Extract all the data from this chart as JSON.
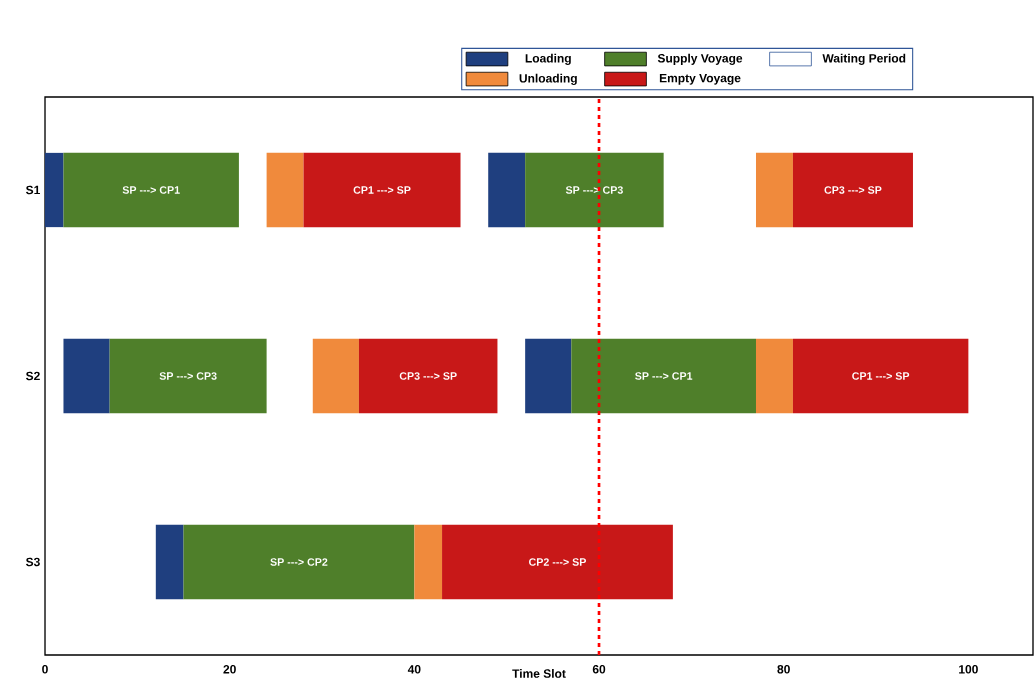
{
  "chart_data": {
    "type": "bar",
    "orientation": "horizontal",
    "xlabel": "Time Slot",
    "categories": [
      "S1",
      "S2",
      "S3"
    ],
    "series": [
      {
        "name": "Loading",
        "color": "#1f3f7f",
        "base": [
          0,
          2,
          12
        ],
        "values": [
          2,
          5,
          3
        ]
      },
      {
        "name": "Supply Voyage",
        "color": "#4f7f2a",
        "base": [
          2,
          7,
          15
        ],
        "values": [
          19,
          17,
          25
        ],
        "value_labels": [
          "SP ---> CP1",
          "SP ---> CP3",
          "SP ---> CP2"
        ]
      },
      {
        "name": "Waiting Period",
        "color": "#ffffff",
        "values": [
          null,
          null,
          null
        ]
      },
      {
        "name": "Unloading",
        "color": "#f08a3c",
        "base": [
          24,
          29,
          40
        ],
        "values": [
          4,
          5,
          3
        ]
      },
      {
        "name": "Empty Voyage",
        "color": "#c81818",
        "base": [
          28,
          34,
          43
        ],
        "values": [
          17,
          15,
          25
        ],
        "value_labels": [
          "CP1 ---> SP",
          "CP3 ---> SP",
          "CP2 ---> SP"
        ]
      },
      {
        "color": "#1f3f7f",
        "base": [
          48,
          52,
          null
        ],
        "values": [
          4,
          5,
          null
        ]
      },
      {
        "color": "#4f7f2a",
        "base": [
          52,
          57,
          null
        ],
        "values": [
          15,
          20,
          null
        ],
        "value_labels": [
          "SP ---> CP3",
          "SP ---> CP1",
          null
        ]
      },
      {
        "color": "#f08a3c",
        "base": [
          77,
          77,
          null
        ],
        "values": [
          4,
          4,
          null
        ]
      },
      {
        "color": "#c81818",
        "base": [
          81,
          81,
          null
        ],
        "values": [
          13,
          19,
          null
        ],
        "value_labels": [
          "CP3 ---> SP",
          "CP1 ---> SP",
          null
        ]
      }
    ],
    "xlim": [
      0,
      107
    ],
    "xticks": [
      0,
      20,
      40,
      60,
      80,
      100
    ],
    "ref_lines": [
      {
        "axis": "x",
        "value": 60,
        "color": "#ff0000",
        "line_style": "dashed"
      }
    ],
    "legend": "top"
  }
}
